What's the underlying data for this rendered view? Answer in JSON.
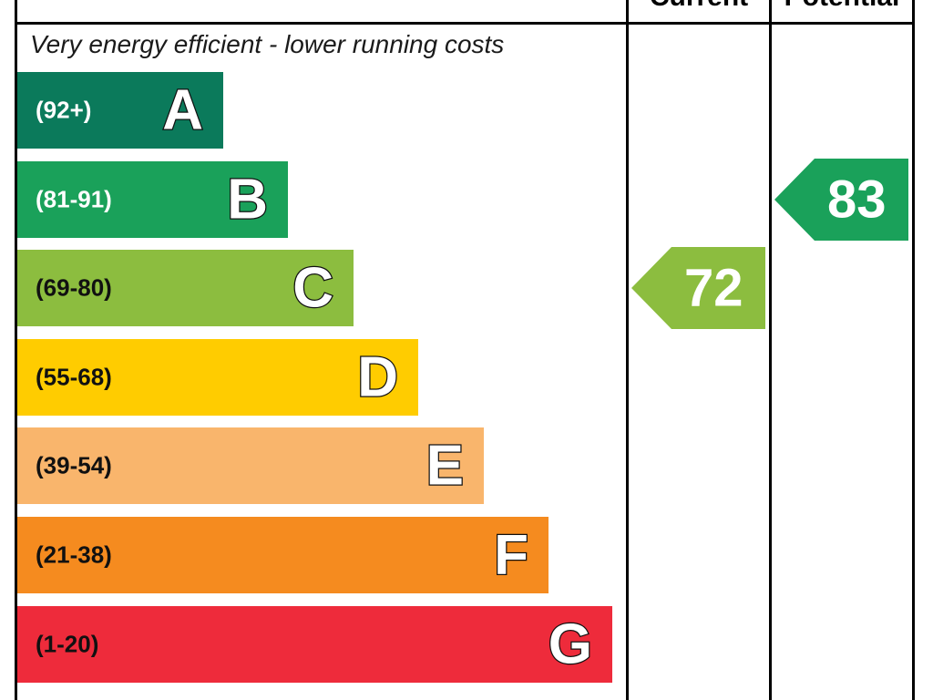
{
  "header": {
    "current_label": "Current",
    "potential_label": "Potential"
  },
  "caption_top": "Very energy efficient - lower running costs",
  "chart_data": {
    "type": "bar",
    "categories": [
      "A",
      "B",
      "C",
      "D",
      "E",
      "F",
      "G"
    ],
    "bands": [
      {
        "letter": "A",
        "range": "(92+)",
        "color": "#0b7a5b"
      },
      {
        "letter": "B",
        "range": "(81-91)",
        "color": "#1aa15a"
      },
      {
        "letter": "C",
        "range": "(69-80)",
        "color": "#8cbd3f"
      },
      {
        "letter": "D",
        "range": "(55-68)",
        "color": "#ffcc00"
      },
      {
        "letter": "E",
        "range": "(39-54)",
        "color": "#f9b56c"
      },
      {
        "letter": "F",
        "range": "(21-38)",
        "color": "#f58b1f"
      },
      {
        "letter": "G",
        "range": "(1-20)",
        "color": "#ee2b3b"
      }
    ],
    "current": {
      "value": 72,
      "band": "C",
      "color": "#8cbd3f"
    },
    "potential": {
      "value": 83,
      "band": "B",
      "color": "#1aa15a"
    }
  }
}
